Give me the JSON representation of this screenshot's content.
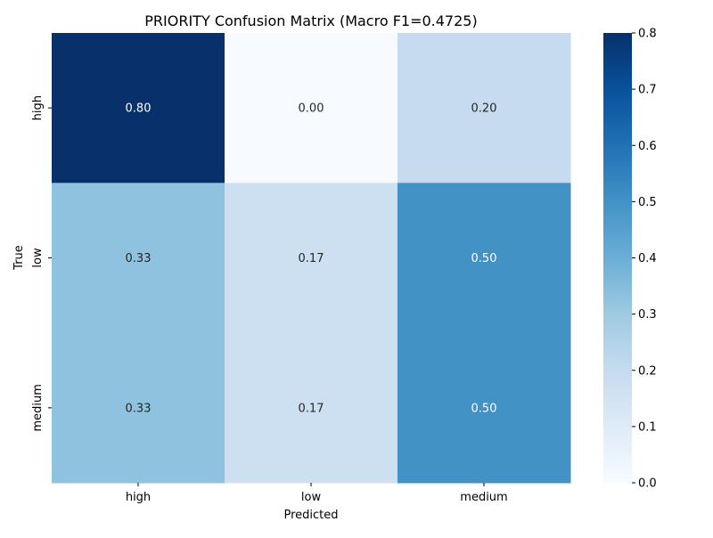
{
  "chart_data": {
    "type": "heatmap",
    "title": "PRIORITY Confusion Matrix (Macro F1=0.4725)",
    "xlabel": "Predicted",
    "ylabel": "True",
    "x_categories": [
      "high",
      "low",
      "medium"
    ],
    "y_categories": [
      "high",
      "low",
      "medium"
    ],
    "values": [
      [
        0.8,
        0.0,
        0.2
      ],
      [
        0.33,
        0.17,
        0.5
      ],
      [
        0.33,
        0.17,
        0.5
      ]
    ],
    "annotations": [
      [
        "0.80",
        "0.00",
        "0.20"
      ],
      [
        "0.33",
        "0.17",
        "0.50"
      ],
      [
        "0.33",
        "0.17",
        "0.50"
      ]
    ],
    "colormap": "Blues",
    "vmin": 0.0,
    "vmax": 0.8,
    "colorbar_ticks": [
      "0.0",
      "0.1",
      "0.2",
      "0.3",
      "0.4",
      "0.5",
      "0.6",
      "0.7",
      "0.8"
    ],
    "colors": {
      "text_dark": "#262626",
      "text_light": "#ffffff",
      "axis": "#000000"
    }
  }
}
